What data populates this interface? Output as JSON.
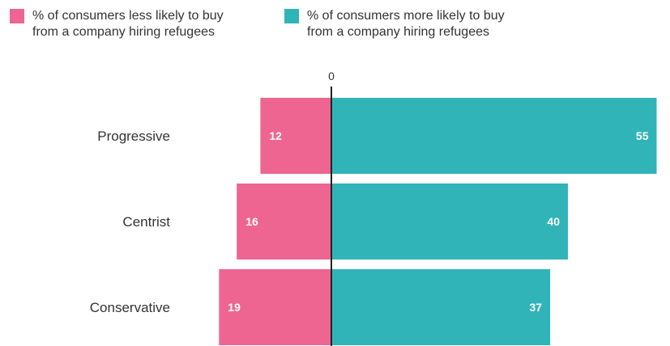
{
  "colors": {
    "less": "#ee6592",
    "more": "#31b4b8",
    "axis": "#222222"
  },
  "legend": {
    "less_label": "% of consumers less likely to buy\nfrom a company hiring refugees",
    "more_label": "% of consumers more likely to buy\nfrom a company hiring refugees"
  },
  "chart_data": {
    "type": "bar",
    "orientation": "horizontal-diverging",
    "categories": [
      "Progressive",
      "Centrist",
      "Conservative"
    ],
    "series": [
      {
        "name": "% of consumers less likely to buy from a company hiring refugees",
        "values": [
          12,
          16,
          19
        ]
      },
      {
        "name": "% of consumers more likely to buy from a company hiring refugees",
        "values": [
          55,
          40,
          37
        ]
      }
    ],
    "zero_tick": "0",
    "legend_position": "top-left",
    "grid": false
  }
}
